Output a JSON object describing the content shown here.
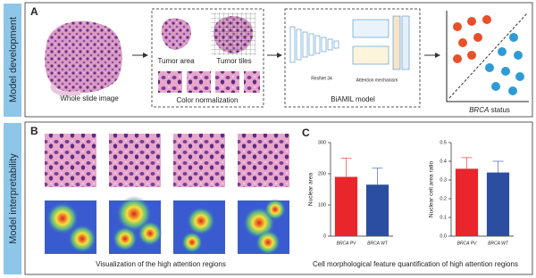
{
  "figure": {
    "side_labels": [
      "Model development",
      "Model interpretability"
    ],
    "panel_a": {
      "letter": "A",
      "whole_slide": "Whole slide image",
      "tumor_area": "Tumor area",
      "tumor_tiles": "Tumor tiles",
      "color_norm": "Color normalization",
      "resnet": "ResNet 34",
      "attention": "Attention mechanism",
      "model": "BiAMIL model",
      "status_gene": "BRCA",
      "status": "status"
    },
    "panel_b": {
      "letter": "B",
      "caption": "Visualization of the high attention regions"
    },
    "panel_c": {
      "letter": "C",
      "caption": "Cell morphological feature quantification of high attention regions"
    }
  },
  "chart_data": [
    {
      "type": "bar",
      "y_label": "Nuclear area",
      "categories": [
        "BRCA PV",
        "BRCA WT"
      ],
      "values": [
        190,
        165
      ],
      "errors": [
        60,
        53
      ],
      "colors": [
        "#e8262b",
        "#2b4ea2"
      ],
      "ylim": [
        0,
        300
      ],
      "yticks": [
        0,
        100,
        200,
        300
      ]
    },
    {
      "type": "bar",
      "y_label": "Nuclear cell area ratio",
      "categories": [
        "BRCA PV",
        "BRCA WT"
      ],
      "values": [
        0.36,
        0.34
      ],
      "errors": [
        0.06,
        0.06
      ],
      "colors": [
        "#e8262b",
        "#2b4ea2"
      ],
      "ylim": [
        0,
        0.5
      ],
      "yticks": [
        {
          "value": 0,
          "label": "0.0"
        },
        0.1,
        0.2,
        0.3,
        0.4,
        0.5
      ]
    }
  ]
}
